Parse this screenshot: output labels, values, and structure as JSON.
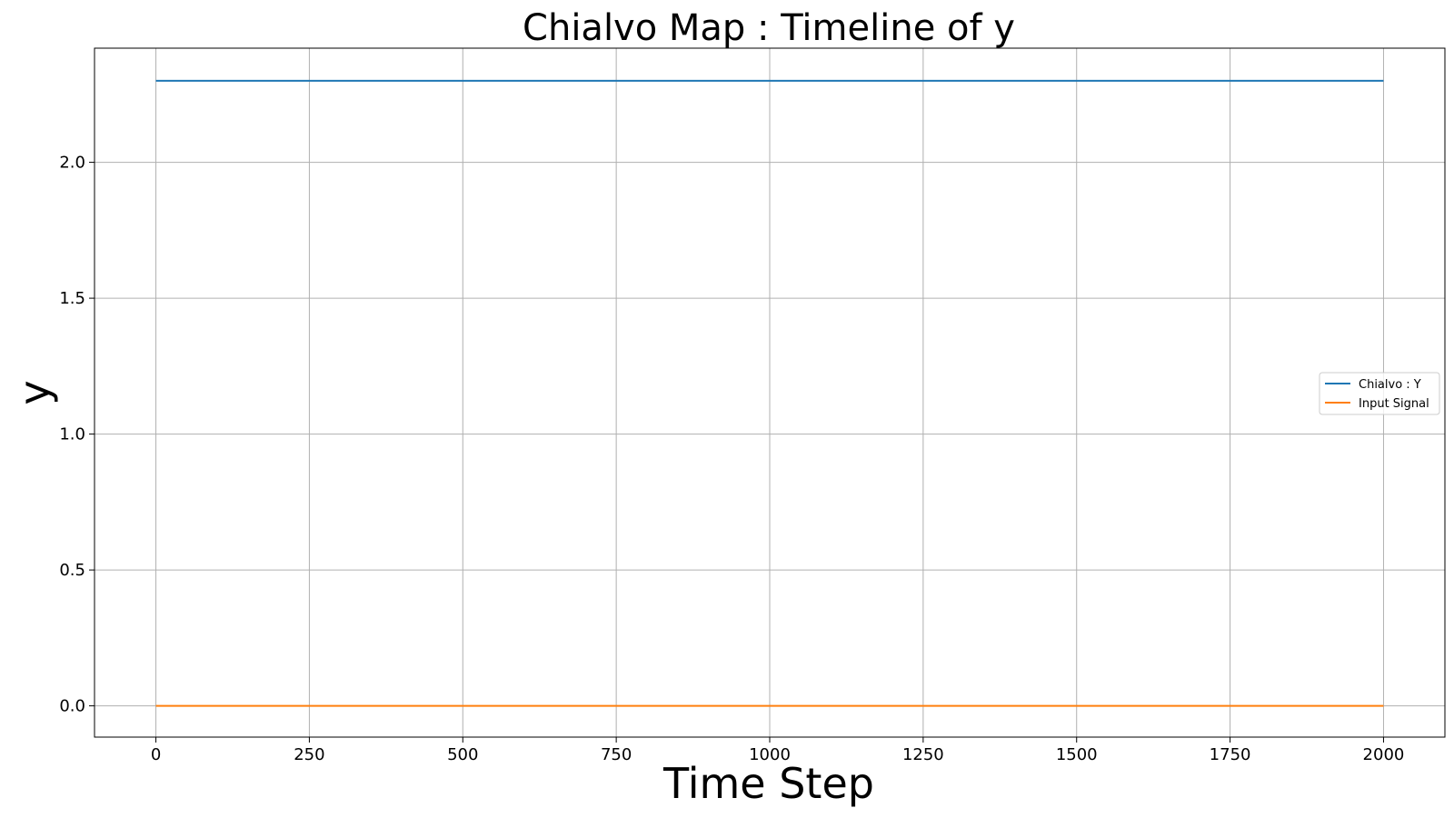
{
  "chart_data": {
    "type": "line",
    "title": "Chialvo Map : Timeline of y",
    "xlabel": "Time Step",
    "ylabel": "y",
    "xlim": [
      -100,
      2100
    ],
    "ylim": [
      -0.115,
      2.42
    ],
    "xticks": [
      0,
      250,
      500,
      750,
      1000,
      1250,
      1500,
      1750,
      2000
    ],
    "yticks": [
      0.0,
      0.5,
      1.0,
      1.5,
      2.0
    ],
    "grid": true,
    "legend_position": "center-right",
    "series": [
      {
        "name": "Chialvo : Y",
        "color": "#1f77b4",
        "x": [
          0,
          2000
        ],
        "y": [
          2.3,
          2.3
        ]
      },
      {
        "name": "Input Signal",
        "color": "#ff7f0e",
        "x": [
          0,
          2000
        ],
        "y": [
          0.0,
          0.0
        ]
      }
    ]
  }
}
